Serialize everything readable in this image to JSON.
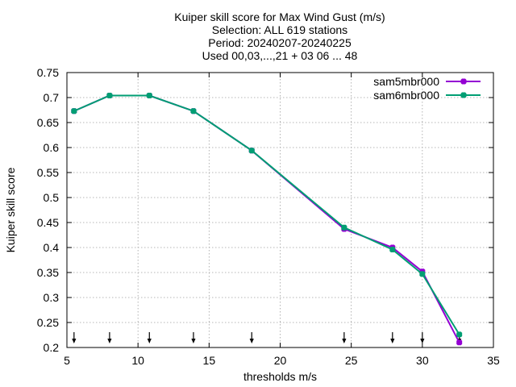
{
  "chart_data": {
    "type": "line",
    "title_lines": [
      "Kuiper skill score  for Max Wind Gust (m/s)",
      "Selection: ALL    619 stations",
      "Period: 20240207-20240225",
      "Used 00,03,...,21 + 03 06 ... 48"
    ],
    "xlabel": "thresholds m/s",
    "ylabel": "Kuiper skill score",
    "xlim": [
      5,
      35
    ],
    "ylim": [
      0.2,
      0.75
    ],
    "xticks": [
      5,
      10,
      15,
      20,
      25,
      30,
      35
    ],
    "xtick_labels": [
      "5",
      "10",
      "15",
      "20",
      "25",
      "30",
      "35"
    ],
    "yticks": [
      0.2,
      0.25,
      0.3,
      0.35,
      0.4,
      0.45,
      0.5,
      0.55,
      0.6,
      0.65,
      0.7,
      0.75
    ],
    "ytick_labels": [
      "0.2",
      "0.25",
      "0.3",
      "0.35",
      "0.4",
      "0.45",
      "0.5",
      "0.55",
      "0.6",
      "0.65",
      "0.7",
      "0.75"
    ],
    "grid": true,
    "legend_position": "top-right",
    "threshold_markers": [
      5.5,
      8,
      10.8,
      13.9,
      18,
      24.5,
      27.9,
      30,
      32.6
    ],
    "x": [
      5.5,
      8,
      10.8,
      13.9,
      18,
      24.5,
      27.9,
      30,
      32.6
    ],
    "series": [
      {
        "name": "sam5mbr000",
        "color": "#9400d3",
        "values": [
          0.673,
          0.704,
          0.704,
          0.673,
          0.594,
          0.437,
          0.4,
          0.352,
          0.21
        ]
      },
      {
        "name": "sam6mbr000",
        "color": "#009e73",
        "values": [
          0.673,
          0.704,
          0.704,
          0.673,
          0.594,
          0.44,
          0.396,
          0.347,
          0.226
        ]
      }
    ]
  }
}
